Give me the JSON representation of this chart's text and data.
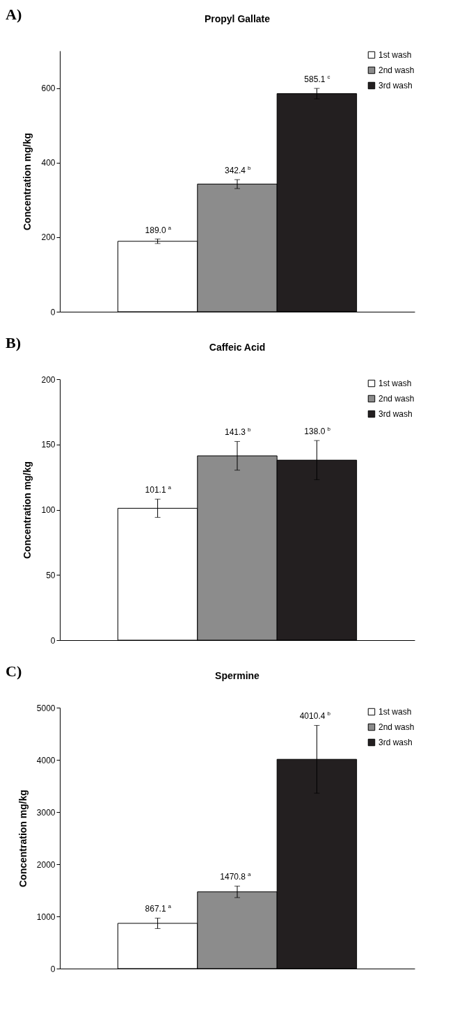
{
  "chart_data": [
    {
      "type": "bar",
      "title": "Propyl Gallate",
      "ylabel": "Concentration mg/kg",
      "annotations": [
        "A)"
      ],
      "categories": [
        null
      ],
      "ylim": [
        0,
        700
      ],
      "yticks": [
        0,
        200,
        400,
        600
      ],
      "legend": "top right",
      "series": [
        {
          "name": "1st wash",
          "color": "#ffffff",
          "values": [
            189.0
          ],
          "errors": [
            6
          ],
          "value_labels": [
            "189.0$^{a}$"
          ]
        },
        {
          "name": "2nd wash",
          "color": "#8c8c8c",
          "values": [
            342.4
          ],
          "errors": [
            12
          ],
          "value_labels": [
            "342.4$^{b}$"
          ]
        },
        {
          "name": "3rd wash",
          "color": "#231f20",
          "values": [
            585.1
          ],
          "errors": [
            14
          ],
          "value_labels": [
            "585.1$^{c}$"
          ]
        }
      ]
    },
    {
      "type": "bar",
      "title": "Caffeic Acid",
      "ylabel": "Concentration mg/kg",
      "annotations": [
        "B)"
      ],
      "categories": [
        null
      ],
      "ylim": [
        0,
        200
      ],
      "yticks": [
        0,
        50,
        100,
        150,
        200
      ],
      "legend": "top right",
      "series": [
        {
          "name": "1st wash",
          "color": "#ffffff",
          "values": [
            101.1
          ],
          "errors": [
            7
          ],
          "value_labels": [
            "101.1$^{a}$"
          ]
        },
        {
          "name": "2nd wash",
          "color": "#8c8c8c",
          "values": [
            141.3
          ],
          "errors": [
            11
          ],
          "value_labels": [
            "141.3$^{b}$"
          ]
        },
        {
          "name": "3rd wash",
          "color": "#231f20",
          "values": [
            138.0
          ],
          "errors": [
            15
          ],
          "value_labels": [
            "138.0$^{b}$"
          ]
        }
      ]
    },
    {
      "type": "bar",
      "title": "Spermine",
      "ylabel": "Concentration mg/kg",
      "annotations": [
        "C)"
      ],
      "categories": [
        null
      ],
      "ylim": [
        0,
        5000
      ],
      "yticks": [
        0,
        1000,
        2000,
        3000,
        4000,
        5000
      ],
      "legend": "top right",
      "series": [
        {
          "name": "1st wash",
          "color": "#ffffff",
          "values": [
            867.1
          ],
          "errors": [
            100
          ],
          "value_labels": [
            "867.1$^{a}$"
          ]
        },
        {
          "name": "2nd wash",
          "color": "#8c8c8c",
          "values": [
            1470.8
          ],
          "errors": [
            110
          ],
          "value_labels": [
            "1470.8$^{a}$"
          ]
        },
        {
          "name": "3rd wash",
          "color": "#231f20",
          "values": [
            4010.4
          ],
          "errors": [
            650
          ],
          "value_labels": [
            "4010.4$^{b}$"
          ]
        }
      ]
    }
  ]
}
